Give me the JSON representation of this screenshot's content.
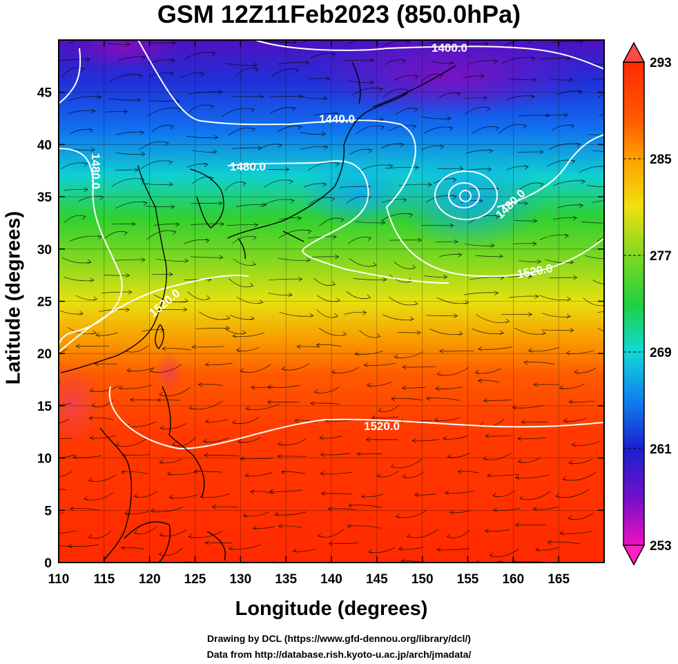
{
  "title": "GSM 12Z11Feb2023 (850.0hPa)",
  "axes": {
    "xlabel": "Longitude (degrees)",
    "ylabel": "Latitude  (degrees)",
    "x_ticks": [
      "110",
      "115",
      "120",
      "125",
      "130",
      "135",
      "140",
      "145",
      "150",
      "155",
      "160",
      "165"
    ],
    "y_ticks": [
      "0",
      "5",
      "10",
      "15",
      "20",
      "25",
      "30",
      "35",
      "40",
      "45"
    ],
    "xlim": [
      110,
      170
    ],
    "ylim": [
      0,
      50
    ]
  },
  "colorbar": {
    "labels": [
      "293",
      "285",
      "277",
      "269",
      "261",
      "253"
    ],
    "range": [
      253,
      293
    ]
  },
  "contour_labels": [
    "1400.0",
    "1440.0",
    "1480.0",
    "1480.0",
    "1480.0",
    "1520.0",
    "1520.0",
    "1520.0"
  ],
  "credits": {
    "line1": "Drawing by DCL (https://www.gfd-dennou.org/library/dcl/)",
    "line2": "Data from http://database.rish.kyoto-u.ac.jp/arch/jmadata/"
  },
  "colors": {
    "warm": "#ff2a00",
    "cold": "#3040e0",
    "purple": "#7a10c8"
  }
}
